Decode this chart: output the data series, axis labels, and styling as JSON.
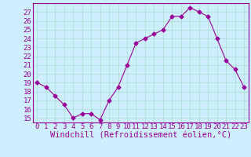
{
  "x": [
    0,
    1,
    2,
    3,
    4,
    5,
    6,
    7,
    8,
    9,
    10,
    11,
    12,
    13,
    14,
    15,
    16,
    17,
    18,
    19,
    20,
    21,
    22,
    23
  ],
  "y": [
    19,
    18.5,
    17.5,
    16.5,
    15,
    15.5,
    15.5,
    14.8,
    17,
    18.5,
    21,
    23.5,
    24,
    24.5,
    25,
    26.5,
    26.5,
    27.5,
    27,
    26.5,
    24,
    21.5,
    20.5,
    18.5
  ],
  "line_color": "#990099",
  "marker": "D",
  "marker_size": 2.5,
  "bg_color": "#cceeff",
  "grid_color": "#aaddcc",
  "xlabel": "Windchill (Refroidissement éolien,°C)",
  "xlabel_color": "#990099",
  "xlim": [
    -0.5,
    23.5
  ],
  "ylim": [
    15,
    27.5
  ],
  "yticks": [
    15,
    16,
    17,
    18,
    19,
    20,
    21,
    22,
    23,
    24,
    25,
    26,
    27
  ],
  "xticks": [
    0,
    1,
    2,
    3,
    4,
    5,
    6,
    7,
    8,
    9,
    10,
    11,
    12,
    13,
    14,
    15,
    16,
    17,
    18,
    19,
    20,
    21,
    22,
    23
  ],
  "tick_label_size": 6.5,
  "xlabel_size": 7.5
}
